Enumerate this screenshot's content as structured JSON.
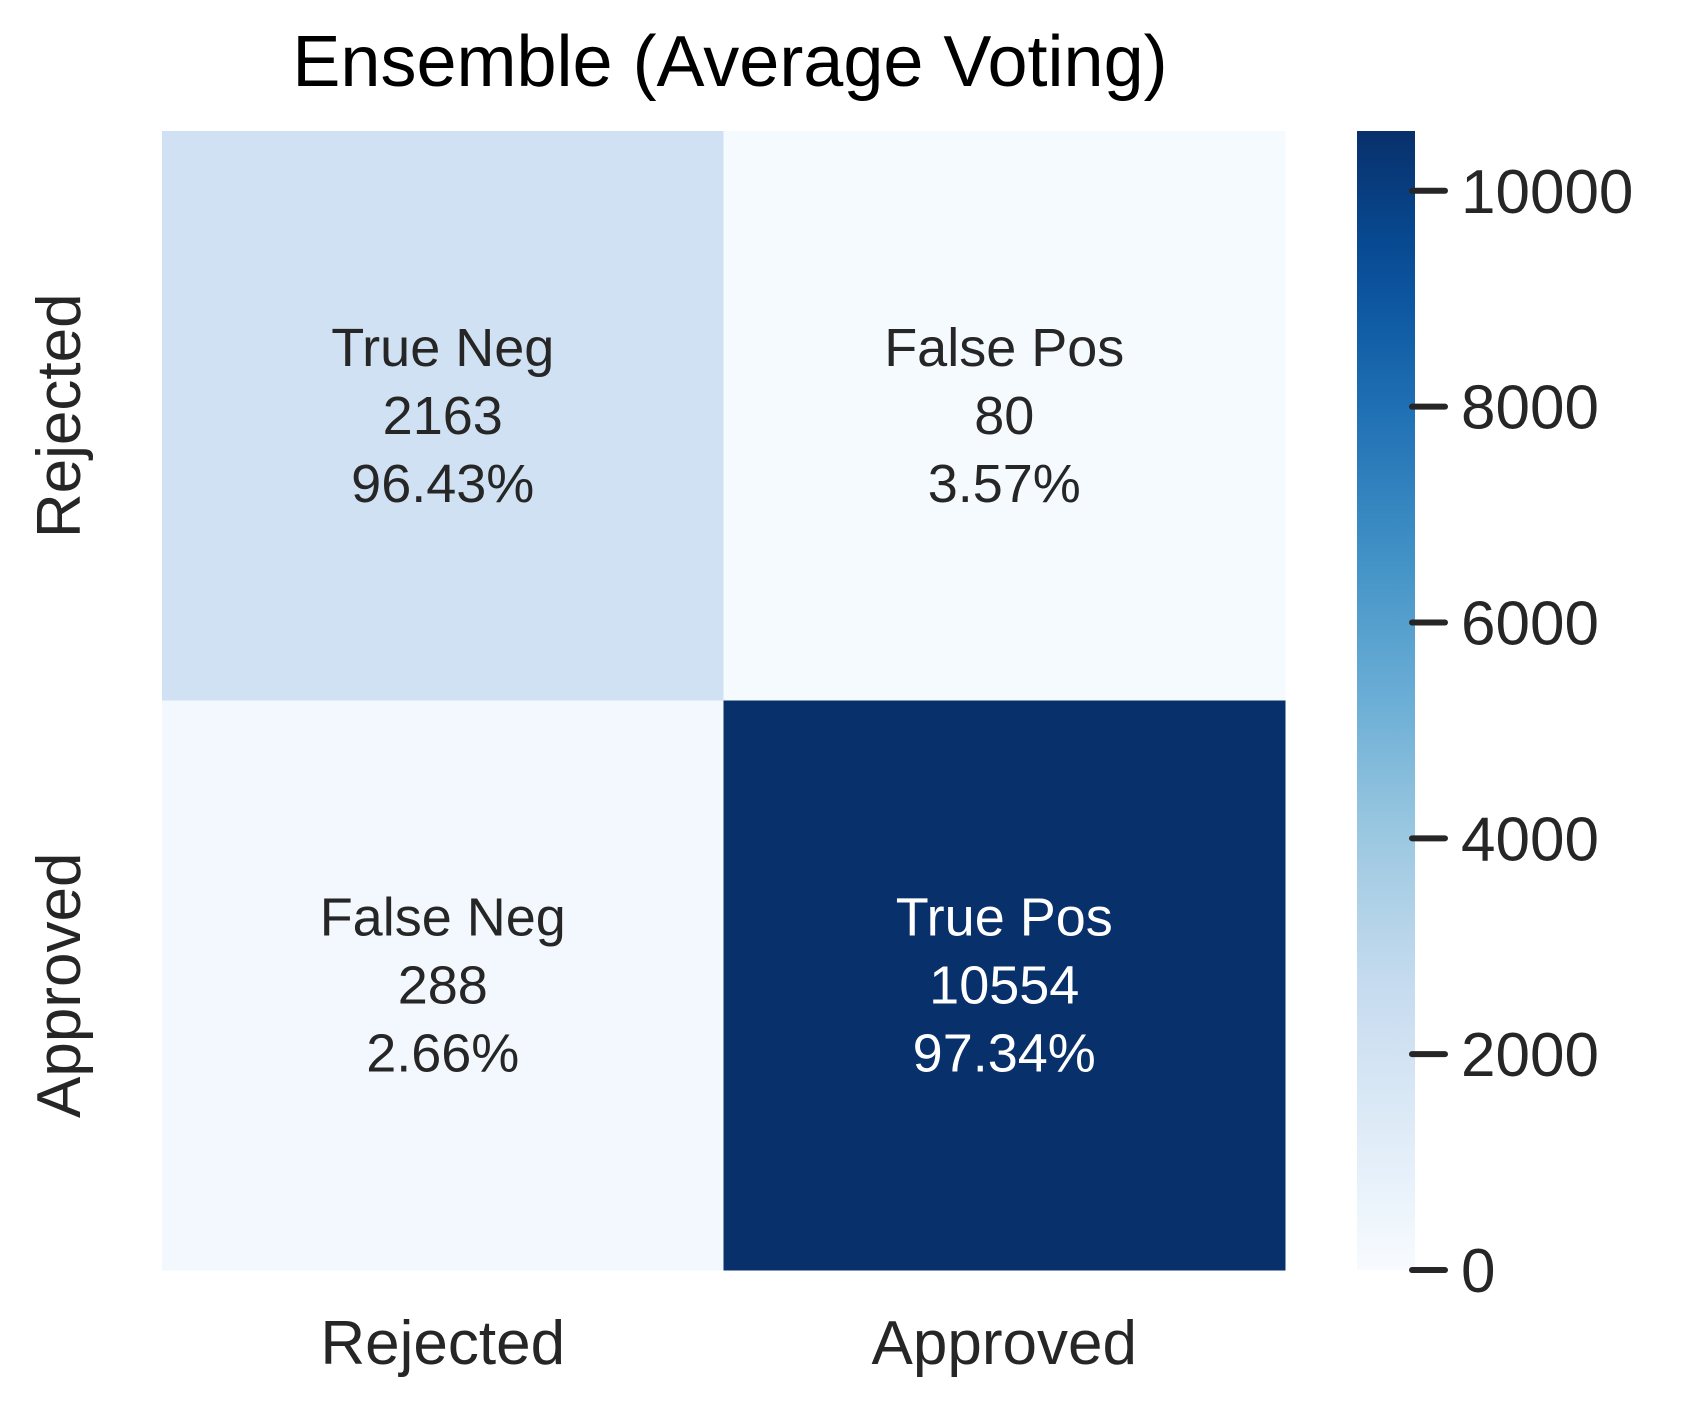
{
  "chart_data": {
    "type": "heatmap",
    "title": "Ensemble (Average Voting)",
    "xlabel": "",
    "ylabel": "",
    "x_categories": [
      "Rejected",
      "Approved"
    ],
    "y_categories": [
      "Rejected",
      "Approved"
    ],
    "cells": [
      [
        {
          "label": "True Neg",
          "count_text": "2163",
          "percent_text": "96.43%",
          "value": 2163
        },
        {
          "label": "False Pos",
          "count_text": "80",
          "percent_text": "3.57%",
          "value": 80
        }
      ],
      [
        {
          "label": "False Neg",
          "count_text": "288",
          "percent_text": "2.66%",
          "value": 288
        },
        {
          "label": "True Pos",
          "count_text": "10554",
          "percent_text": "97.34%",
          "value": 10554
        }
      ]
    ],
    "colorbar": {
      "vmin": 0,
      "vmax": 10554,
      "ticks": [
        0,
        2000,
        4000,
        6000,
        8000,
        10000
      ],
      "tick_labels": [
        "0",
        "2000",
        "4000",
        "6000",
        "8000",
        "10000"
      ]
    },
    "colormap": "Blues",
    "colors": {
      "background": "#ffffff",
      "text_dark": "#262626",
      "text_light": "#ffffff",
      "title": "#000000"
    }
  }
}
